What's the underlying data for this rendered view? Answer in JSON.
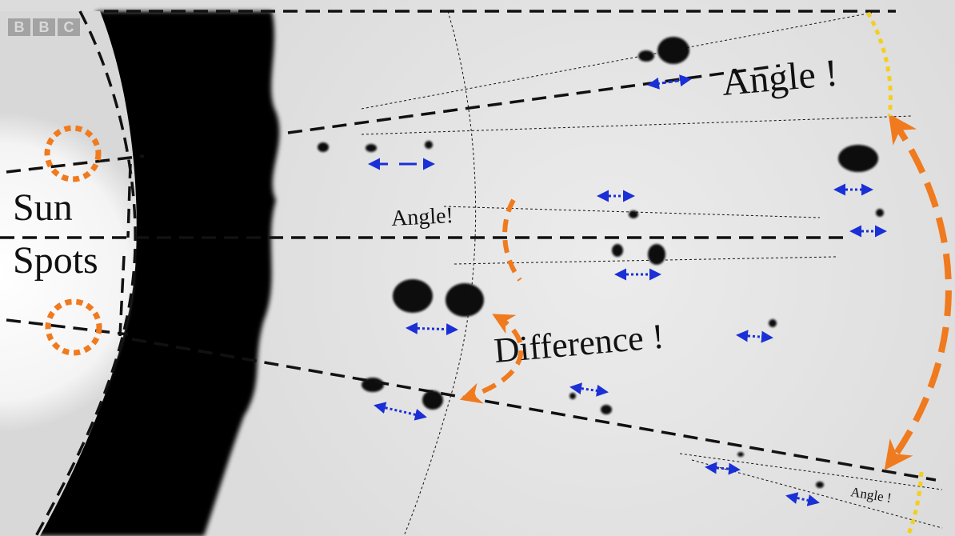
{
  "logo": {
    "letters": [
      "B",
      "B",
      "C"
    ]
  },
  "labels": {
    "angle_top": "Angle !",
    "angle_mid": "Angle!",
    "angle_small": "Angle !",
    "difference": "Difference !",
    "sun": "Sun",
    "spots": "Spots"
  },
  "colors": {
    "top_bar": "#f7b500",
    "annotation_orange": "#f07a1e",
    "arrow_blue": "#1a2fd6",
    "yellow_dotted": "#f3cf1e",
    "guide_lines": "#111111",
    "sunspot": "#0a0a0a",
    "shadow": "#000000",
    "sun_disk": "#ffffff"
  }
}
